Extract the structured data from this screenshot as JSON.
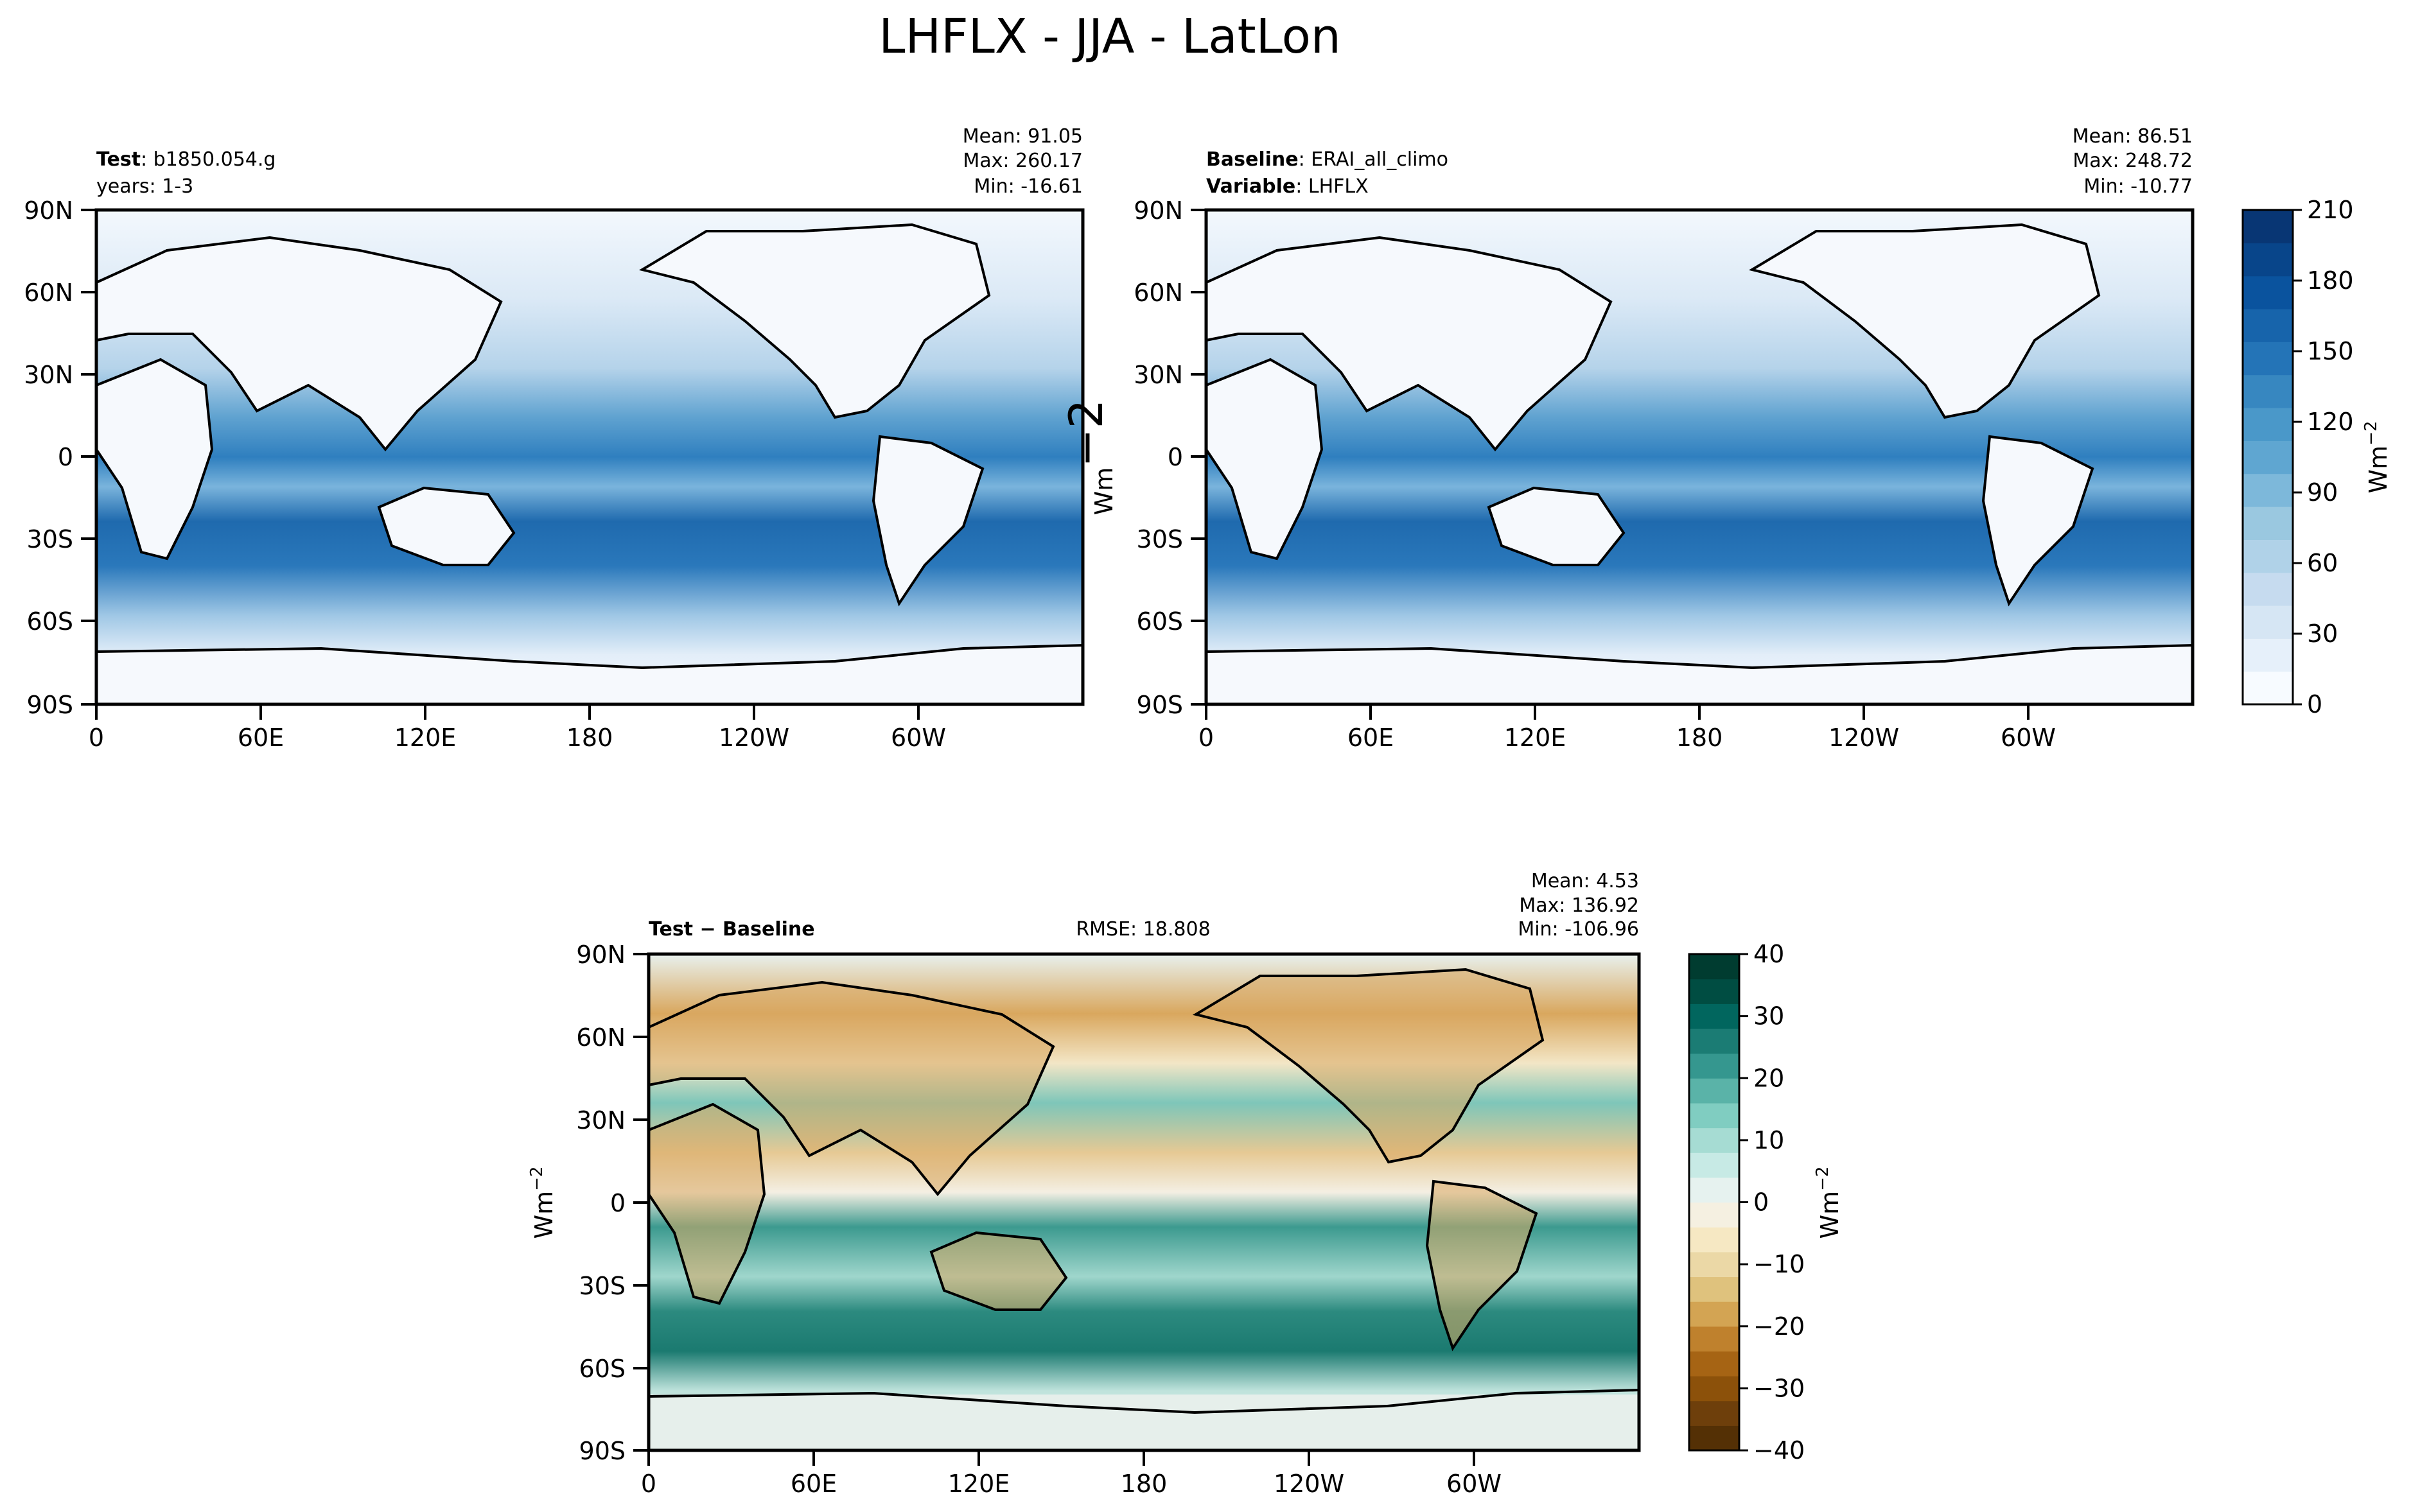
{
  "figure": {
    "title": "LHFLX - JJA - LatLon"
  },
  "icons": {
    "colorbar": "colorbar-icon",
    "coastline": "coastline-icon"
  },
  "chart_data": [
    {
      "type": "heatmap",
      "panel": "test",
      "header_left": [
        {
          "bold": "Test",
          "text": ": b1850.054.g"
        },
        {
          "bold": "",
          "text": "years: 1-3"
        }
      ],
      "stats": [
        "Mean: 91.05",
        "Max: 260.17",
        "Min: -16.61"
      ],
      "yticks": [
        "90N",
        "60N",
        "30N",
        "0",
        "30S",
        "60S",
        "90S"
      ],
      "xticks": [
        "0",
        "60E",
        "120E",
        "180",
        "120W",
        "60W"
      ],
      "xlim": [
        0,
        360
      ],
      "ylim": [
        -90,
        90
      ],
      "values": {
        "mean": 91.05,
        "max": 260.17,
        "min": -16.61
      },
      "colormap": "Blues"
    },
    {
      "type": "heatmap",
      "panel": "baseline",
      "header_left": [
        {
          "bold": "Baseline",
          "text": ": ERAI_all_climo"
        },
        {
          "bold": "Variable",
          "text": ": LHFLX"
        }
      ],
      "stats": [
        "Mean: 86.51",
        "Max: 248.72",
        "Min: -10.77"
      ],
      "yticks": [
        "90N",
        "60N",
        "30N",
        "0",
        "30S",
        "60S",
        "90S"
      ],
      "xticks": [
        "0",
        "60E",
        "120E",
        "180",
        "120W",
        "60W"
      ],
      "xlim": [
        0,
        360
      ],
      "ylim": [
        -90,
        90
      ],
      "ylabel": "Wm",
      "ylabel_sup": "−2",
      "values": {
        "mean": 86.51,
        "max": 248.72,
        "min": -10.77
      },
      "colormap": "Blues",
      "colorbar": {
        "label": "Wm",
        "label_sup": "−2",
        "ticks": [
          "210",
          "180",
          "150",
          "120",
          "90",
          "60",
          "30",
          "0"
        ],
        "range": [
          0,
          210
        ],
        "colors": [
          "#f7fbff",
          "#e6f0fa",
          "#d6e6f4",
          "#c6dbef",
          "#b0d2e8",
          "#9ac8e0",
          "#7db8da",
          "#5fa6d1",
          "#4a98c9",
          "#3787c0",
          "#2474b7",
          "#1764ab",
          "#0a539e",
          "#08458a",
          "#083674"
        ]
      }
    },
    {
      "type": "heatmap",
      "panel": "difference",
      "header_left": [
        {
          "bold": "Test − Baseline",
          "text": ""
        }
      ],
      "header_center": "RMSE: 18.808",
      "stats": [
        "Mean:  4.53",
        "Max: 136.92",
        "Min: -106.96"
      ],
      "yticks": [
        "90N",
        "60N",
        "30N",
        "0",
        "30S",
        "60S",
        "90S"
      ],
      "xticks": [
        "0",
        "60E",
        "120E",
        "180",
        "120W",
        "60W"
      ],
      "xlim": [
        0,
        360
      ],
      "ylim": [
        -90,
        90
      ],
      "ylabel": "Wm",
      "ylabel_sup": "−2",
      "values": {
        "mean": 4.53,
        "max": 136.92,
        "min": -106.96,
        "rmse": 18.808
      },
      "colormap": "BrBG",
      "colorbar": {
        "label": "Wm",
        "label_sup": "−2",
        "ticks": [
          "40",
          "30",
          "20",
          "10",
          "0",
          "−10",
          "−20",
          "−30",
          "−40"
        ],
        "range": [
          -40,
          40
        ],
        "colors": [
          "#543005",
          "#6e3f0b",
          "#8c510a",
          "#a66414",
          "#bf812d",
          "#d3a453",
          "#dfc27d",
          "#ebd8a6",
          "#f6e8c3",
          "#f5f0e1",
          "#e6f2ef",
          "#c7eae5",
          "#a6dcd3",
          "#80cdc1",
          "#5ab3a8",
          "#35978f",
          "#1b7c74",
          "#01665e",
          "#004d42",
          "#003c30"
        ]
      }
    }
  ]
}
